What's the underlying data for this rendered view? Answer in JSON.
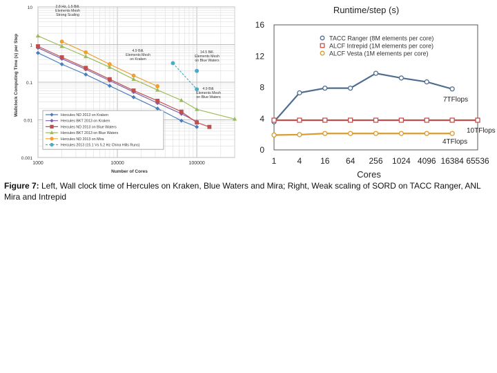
{
  "chart_data": [
    {
      "type": "line",
      "scale": "log-log",
      "title": "",
      "xlabel": "Number of Cores",
      "ylabel": "Wallclock Computing Time (s) per Step",
      "xlim": [
        1000,
        300000
      ],
      "ylim": [
        0.001,
        10
      ],
      "x_ticks": [
        1000,
        10000,
        100000
      ],
      "x_tick_labels": [
        "1000",
        "10000",
        "100000"
      ],
      "y_ticks": [
        0.001,
        0.01,
        0.1,
        1,
        10
      ],
      "y_tick_labels": [
        "0.001",
        "0.01",
        "0.1",
        "1",
        "10"
      ],
      "grid": true,
      "legend_position": "bottom-left",
      "series": [
        {
          "name": "Hercules ND 2013 on Kraken",
          "color": "#4a7ebb",
          "marker": "diamond",
          "x": [
            1000,
            2000,
            4000,
            8000,
            16000,
            32000,
            64000,
            100000
          ],
          "y": [
            0.6,
            0.3,
            0.16,
            0.08,
            0.04,
            0.02,
            0.0095,
            0.0065
          ]
        },
        {
          "name": "Hercules BKT 2013 on Kraken",
          "color": "#7d5fa8",
          "marker": "diamond",
          "x": [
            1000,
            2000,
            4000,
            8000,
            16000,
            32000,
            64000,
            100000
          ],
          "y": [
            0.82,
            0.42,
            0.22,
            0.11,
            0.055,
            0.028,
            0.0145,
            0.009
          ]
        },
        {
          "name": "Hercules ND 2013 on Blue Waters",
          "color": "#c0504d",
          "marker": "square",
          "x": [
            1000,
            2000,
            4000,
            8000,
            16000,
            32000,
            64000,
            100000,
            144000
          ],
          "y": [
            0.9,
            0.46,
            0.24,
            0.12,
            0.06,
            0.032,
            0.0165,
            0.0085,
            0.0065
          ]
        },
        {
          "name": "Hercules BKT 2013 on Blue Waters",
          "color": "#9bbb59",
          "marker": "triangle",
          "x": [
            1000,
            2000,
            4000,
            8000,
            16000,
            32000,
            64000,
            100000,
            300000
          ],
          "y": [
            1.7,
            0.9,
            0.48,
            0.25,
            0.12,
            0.062,
            0.033,
            0.019,
            0.0105
          ]
        },
        {
          "name": "Hercules ND 2013 on Mira",
          "color": "#f0a030",
          "marker": "circle",
          "x": [
            2000,
            4000,
            8000,
            16000,
            32000
          ],
          "y": [
            1.2,
            0.62,
            0.3,
            0.15,
            0.078
          ]
        },
        {
          "name": "Hercules 2013 (15.1 Vs 5.2 Hz China Hills Runs)",
          "color": "#4bacc6",
          "marker": "circle",
          "dashed": true,
          "x": [
            50000,
            100000
          ],
          "y": [
            0.32,
            0.065
          ]
        }
      ],
      "annotations": [
        {
          "text": [
            "2.8 Hz, 1.5 Bill.",
            "Elements Mesh",
            "Strong Scaling"
          ]
        },
        {
          "text": [
            "4.9 Bill.",
            "Elements Mesh",
            "on Kraken"
          ]
        },
        {
          "text": [
            "14.5 Bill.",
            "Elements Mesh",
            "on Blue Waters"
          ]
        },
        {
          "text": [
            "4.9 Bill.",
            "Elements Mesh",
            "on Blue Waters"
          ]
        }
      ],
      "extra_points": [
        {
          "x": 100000,
          "y": 0.2,
          "color": "#4bacc6"
        }
      ]
    },
    {
      "type": "line",
      "title": "Runtime/step (s)",
      "xlabel": "Cores",
      "ylabel": "",
      "categories": [
        "1",
        "4",
        "16",
        "64",
        "256",
        "1024",
        "4096",
        "16384",
        "65536"
      ],
      "ylim": [
        0,
        16
      ],
      "y_ticks": [
        0,
        4,
        8,
        12,
        16
      ],
      "grid": false,
      "legend_position": "top",
      "series": [
        {
          "name": "TACC Ranger (8M elements per core)",
          "color": "#4f6d8f",
          "marker": "circle",
          "values": [
            3.6,
            7.3,
            7.9,
            7.9,
            9.8,
            9.2,
            8.7,
            7.8,
            null
          ]
        },
        {
          "name": "ALCF Intrepid (1M elements per core)",
          "color": "#c0504d",
          "marker": "square",
          "values": [
            3.8,
            3.8,
            3.8,
            3.8,
            3.8,
            3.8,
            3.8,
            3.8,
            3.8
          ]
        },
        {
          "name": "ALCF Vesta (1M elements per core)",
          "color": "#d99a30",
          "marker": "circle",
          "values": [
            1.9,
            1.95,
            2.1,
            2.1,
            2.1,
            2.1,
            2.1,
            2.1,
            null
          ]
        }
      ],
      "annotations": [
        {
          "text": "7TFlops",
          "series": 0
        },
        {
          "text": "10TFlops",
          "series": 1
        },
        {
          "text": "4TFlops",
          "series": 2
        }
      ]
    }
  ],
  "caption": {
    "label": "Figure 7:",
    "text": " Left, Wall clock time of Hercules on Kraken, Blue Waters and Mira; Right, Weak scaling of SORD on TACC Ranger, ANL Mira and Intrepid"
  }
}
